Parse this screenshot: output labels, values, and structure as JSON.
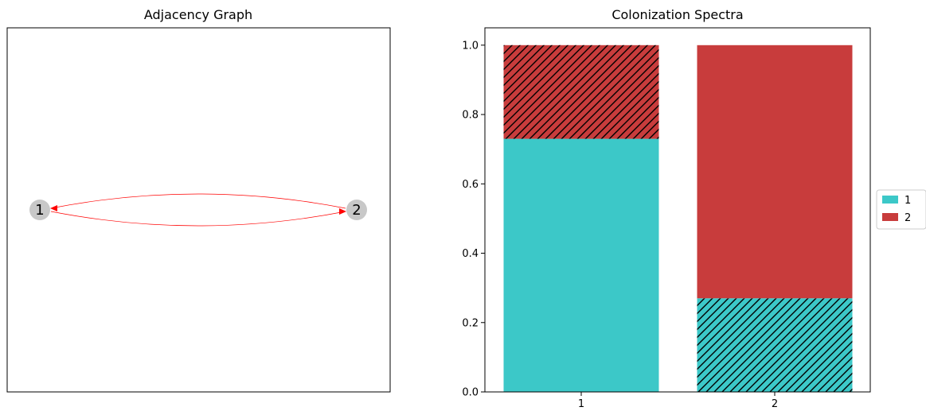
{
  "graph": {
    "title": "Adjacency Graph",
    "nodes": [
      {
        "label": "1"
      },
      {
        "label": "2"
      }
    ],
    "edges": [
      {
        "from": "1",
        "to": "2"
      },
      {
        "from": "2",
        "to": "1"
      }
    ],
    "node_color": "#c8c8c8",
    "edge_color": "#ff0000"
  },
  "chart_data": {
    "type": "bar",
    "title": "Colonization Spectra",
    "categories": [
      "1",
      "2"
    ],
    "series": [
      {
        "name": "1",
        "color": "#3cc8c8",
        "values": [
          0.73,
          0.27
        ],
        "hatched": [
          false,
          true
        ]
      },
      {
        "name": "2",
        "color": "#c83c3c",
        "values": [
          0.27,
          0.73
        ],
        "hatched": [
          true,
          false
        ]
      }
    ],
    "ylim": [
      0,
      1.05
    ],
    "yticks": [
      "0.0",
      "0.2",
      "0.4",
      "0.6",
      "0.8",
      "1.0"
    ],
    "legend_position": "right"
  }
}
